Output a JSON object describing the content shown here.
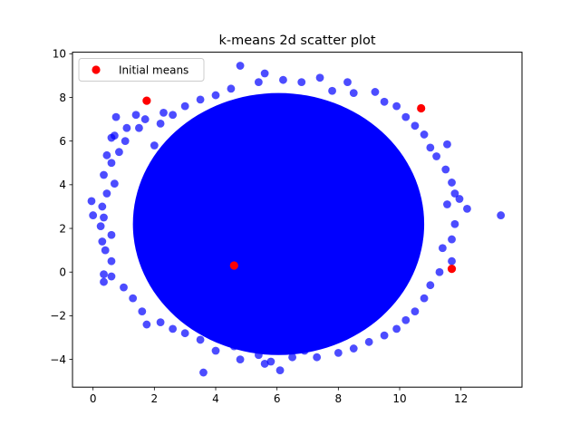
{
  "chart_data": {
    "type": "scatter",
    "title": "k-means 2d scatter plot",
    "xlabel": "",
    "ylabel": "",
    "xlim": [
      -0.67,
      13.99
    ],
    "ylim": [
      -5.27,
      10.07
    ],
    "xticks": [
      0,
      2,
      4,
      6,
      8,
      10,
      12
    ],
    "yticks": [
      -4,
      -2,
      0,
      2,
      4,
      6,
      8,
      10
    ],
    "grid": false,
    "legend": {
      "placement": "upper left",
      "entries": [
        "Initial means"
      ]
    },
    "series": [
      {
        "color": "#0000ff",
        "opacity": 0.7,
        "points": [
          [
            2.0,
            5.8
          ],
          [
            2.2,
            6.8
          ],
          [
            2.6,
            7.2
          ],
          [
            3.0,
            7.6
          ],
          [
            3.5,
            7.9
          ],
          [
            4.0,
            8.1
          ],
          [
            4.5,
            8.4
          ],
          [
            4.8,
            9.45
          ],
          [
            5.4,
            8.7
          ],
          [
            5.6,
            9.1
          ],
          [
            6.2,
            8.8
          ],
          [
            6.8,
            8.7
          ],
          [
            7.4,
            8.9
          ],
          [
            7.8,
            8.3
          ],
          [
            8.3,
            8.7
          ],
          [
            8.5,
            8.2
          ],
          [
            9.2,
            8.25
          ],
          [
            9.5,
            7.8
          ],
          [
            9.9,
            7.6
          ],
          [
            10.2,
            7.1
          ],
          [
            10.5,
            6.7
          ],
          [
            10.8,
            6.3
          ],
          [
            11.0,
            5.7
          ],
          [
            11.2,
            5.3
          ],
          [
            11.55,
            5.85
          ],
          [
            11.5,
            4.7
          ],
          [
            11.7,
            4.1
          ],
          [
            11.8,
            3.6
          ],
          [
            11.55,
            3.1
          ],
          [
            11.95,
            3.35
          ],
          [
            12.2,
            2.9
          ],
          [
            13.3,
            2.6
          ],
          [
            11.8,
            2.2
          ],
          [
            11.7,
            1.5
          ],
          [
            11.4,
            1.1
          ],
          [
            11.7,
            0.5
          ],
          [
            11.3,
            0.0
          ],
          [
            11.0,
            -0.6
          ],
          [
            10.8,
            -1.2
          ],
          [
            10.5,
            -1.8
          ],
          [
            10.2,
            -2.2
          ],
          [
            9.9,
            -2.6
          ],
          [
            9.5,
            -2.9
          ],
          [
            9.0,
            -3.2
          ],
          [
            8.5,
            -3.5
          ],
          [
            8.0,
            -3.7
          ],
          [
            7.3,
            -3.9
          ],
          [
            6.9,
            -3.6
          ],
          [
            6.5,
            -3.9
          ],
          [
            5.8,
            -4.1
          ],
          [
            6.1,
            -4.5
          ],
          [
            5.6,
            -4.2
          ],
          [
            5.4,
            -3.8
          ],
          [
            4.8,
            -4.0
          ],
          [
            4.6,
            -3.4
          ],
          [
            4.0,
            -3.6
          ],
          [
            3.6,
            -4.6
          ],
          [
            3.5,
            -3.1
          ],
          [
            3.0,
            -2.8
          ],
          [
            2.6,
            -2.6
          ],
          [
            2.2,
            -2.3
          ],
          [
            1.75,
            -2.4
          ],
          [
            1.6,
            -1.8
          ],
          [
            1.3,
            -1.2
          ],
          [
            1.0,
            -0.7
          ],
          [
            0.6,
            -0.2
          ],
          [
            0.35,
            -0.1
          ],
          [
            0.35,
            -0.45
          ],
          [
            0.6,
            0.5
          ],
          [
            0.4,
            1.0
          ],
          [
            0.3,
            1.4
          ],
          [
            0.6,
            1.7
          ],
          [
            0.25,
            2.1
          ],
          [
            0.0,
            2.6
          ],
          [
            0.35,
            2.5
          ],
          [
            0.3,
            3.0
          ],
          [
            -0.05,
            3.25
          ],
          [
            0.45,
            3.6
          ],
          [
            0.35,
            4.45
          ],
          [
            0.7,
            4.05
          ],
          [
            0.6,
            5.0
          ],
          [
            0.45,
            5.35
          ],
          [
            0.85,
            5.5
          ],
          [
            0.6,
            6.15
          ],
          [
            0.7,
            6.25
          ],
          [
            1.05,
            6.0
          ],
          [
            1.1,
            6.6
          ],
          [
            0.75,
            7.1
          ],
          [
            1.4,
            7.2
          ],
          [
            1.5,
            6.6
          ],
          [
            1.7,
            7.0
          ],
          [
            2.3,
            7.3
          ]
        ]
      },
      {
        "name": "Initial means",
        "color": "#ff0000",
        "points": [
          [
            1.75,
            7.85
          ],
          [
            10.7,
            7.5
          ],
          [
            4.6,
            0.3
          ],
          [
            11.7,
            0.15
          ]
        ]
      }
    ],
    "cloud": {
      "center": [
        6.05,
        2.2
      ],
      "rx": 4.75,
      "ry": 6.0,
      "color": "#0000ff"
    }
  }
}
